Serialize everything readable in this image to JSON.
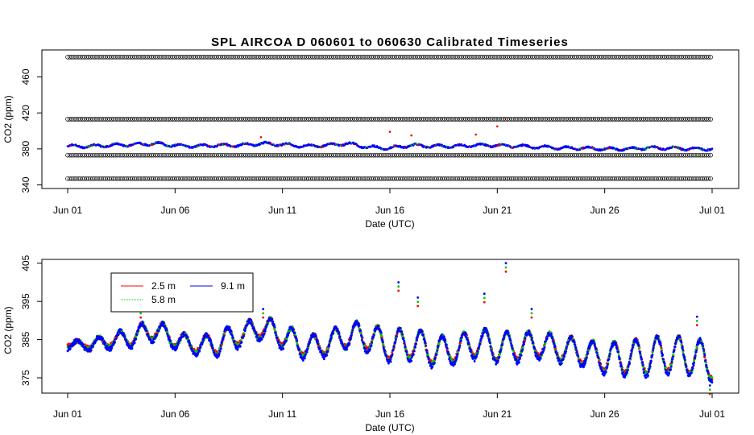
{
  "chart_data": [
    {
      "type": "scatter",
      "title": "SPL   AIRCOA  D    060601  to  060630   Calibrated Timeseries",
      "xlabel": "Date (UTC)",
      "ylabel": "CO2 (ppm)",
      "xlim": [
        "2006-06-01",
        "2006-07-01"
      ],
      "ylim": [
        336,
        490
      ],
      "x_ticks": [
        "Jun 01",
        "Jun 06",
        "Jun 11",
        "Jun 16",
        "Jun 21",
        "Jun 26",
        "Jul 01"
      ],
      "y_ticks": [
        340,
        380,
        420,
        460
      ],
      "y_tick_labels": [
        "340",
        "380",
        "420",
        "460"
      ],
      "calibration_series": [
        {
          "marker": "open-circle",
          "color": "#000000",
          "values_ppm": [
            482,
            413,
            373,
            347
          ]
        }
      ],
      "series": [
        {
          "color": "#0000ff",
          "marker": "dot"
        }
      ],
      "ambient_trace_ppm_by_day": [
        383,
        383,
        384,
        385,
        386,
        384,
        383,
        384,
        384,
        386,
        385,
        383,
        384,
        386,
        382,
        381,
        384,
        383,
        383,
        384,
        384,
        383,
        382,
        381,
        381,
        380,
        380,
        381,
        381,
        380,
        380
      ],
      "spikes": [
        {
          "date": "2006-06-16",
          "value": 399
        },
        {
          "date": "2006-06-17",
          "value": 395
        },
        {
          "date": "2006-06-20",
          "value": 396
        },
        {
          "date": "2006-06-21",
          "value": 405
        },
        {
          "date": "2006-06-10",
          "value": 393
        }
      ],
      "grid": false
    },
    {
      "type": "scatter",
      "title": "",
      "xlabel": "Date (UTC)",
      "ylabel": "CO2 (ppm)",
      "xlim": [
        "2006-06-01",
        "2006-07-01"
      ],
      "ylim": [
        371,
        406
      ],
      "x_ticks": [
        "Jun 01",
        "Jun 06",
        "Jun 11",
        "Jun 16",
        "Jun 21",
        "Jun 26",
        "Jul 01"
      ],
      "y_ticks": [
        375,
        385,
        395,
        405
      ],
      "y_tick_labels": [
        "375",
        "385",
        "395",
        "405"
      ],
      "legend_position": "top-left",
      "series": [
        {
          "name": "2.5 m",
          "color": "#ff0000",
          "offset_ppm": 0.9
        },
        {
          "name": "5.8 m",
          "color": "#00cc00",
          "offset_ppm": 0.4
        },
        {
          "name": "9.1 m",
          "color": "#0000ff",
          "offset_ppm": 0
        }
      ],
      "daily_mean_ppm": [
        383.5,
        383.5,
        384.5,
        385.5,
        387.5,
        385,
        383,
        384,
        386,
        388,
        386,
        383,
        383.5,
        386,
        385.5,
        383,
        384,
        382,
        382,
        384,
        383,
        383,
        383.5,
        382.5,
        381.5,
        380,
        380,
        380.5,
        381,
        380.5,
        379
      ],
      "daily_amplitude_ppm": [
        1,
        1.5,
        2,
        2.5,
        3,
        2.5,
        2,
        3.5,
        3,
        3,
        3.5,
        3,
        3,
        3.5,
        4,
        4,
        4.5,
        4,
        3.5,
        4,
        4,
        4,
        3.5,
        3.5,
        3.5,
        4,
        4.5,
        5,
        5,
        5,
        5
      ],
      "spikes": [
        {
          "date": "2006-06-04.4",
          "value": 393
        },
        {
          "date": "2006-06-10.1",
          "value": 393
        },
        {
          "date": "2006-06-16.4",
          "value": 400
        },
        {
          "date": "2006-06-17.3",
          "value": 396
        },
        {
          "date": "2006-06-20.4",
          "value": 397
        },
        {
          "date": "2006-06-21.4",
          "value": 405
        },
        {
          "date": "2006-06-22.6",
          "value": 393
        },
        {
          "date": "2006-06-30.3",
          "value": 391
        },
        {
          "date": "2006-06-30.9",
          "value": 373
        }
      ],
      "grid": false
    }
  ]
}
